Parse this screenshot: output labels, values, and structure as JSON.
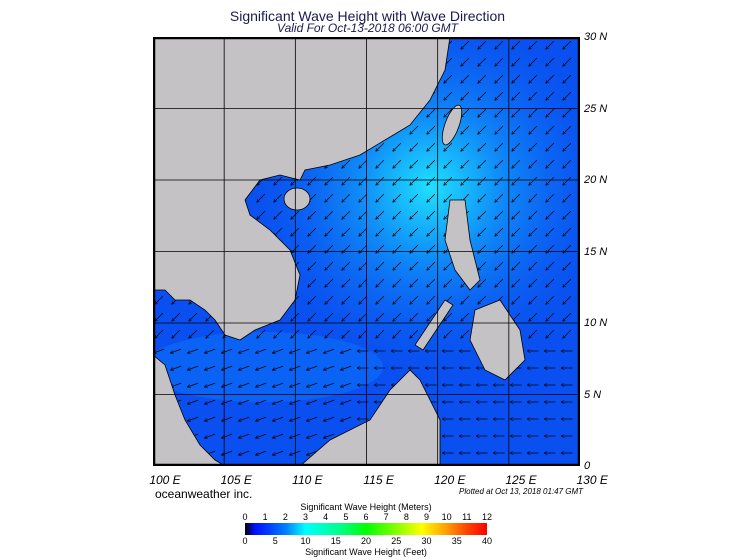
{
  "title": "Significant Wave Height with Wave Direction",
  "subtitle": "Valid For Oct-13-2018 06:00 GMT",
  "lat_labels": [
    "30 N",
    "25 N",
    "20 N",
    "15 N",
    "10 N",
    "5 N",
    "0"
  ],
  "lon_labels": [
    "100 E",
    "105 E",
    "110 E",
    "115 E",
    "120 E",
    "125 E",
    "130 E"
  ],
  "brand": "oceanweather inc.",
  "plotted": "Plotted at Oct 13, 2018 01:47 GMT",
  "legend": {
    "meters_title": "Significant Wave Height (Meters)",
    "meters_ticks": [
      "0",
      "1",
      "2",
      "3",
      "4",
      "5",
      "6",
      "7",
      "8",
      "9",
      "10",
      "11",
      "12"
    ],
    "feet_ticks": [
      "0",
      "5",
      "10",
      "15",
      "20",
      "25",
      "30",
      "35",
      "40"
    ],
    "feet_title": "Significant Wave Height (Feet)"
  },
  "colors": {
    "land": "#c4c2c4",
    "ocean": "#0a50f0",
    "ocean_high": "#18c8f8",
    "title": "#1a1a50"
  }
}
